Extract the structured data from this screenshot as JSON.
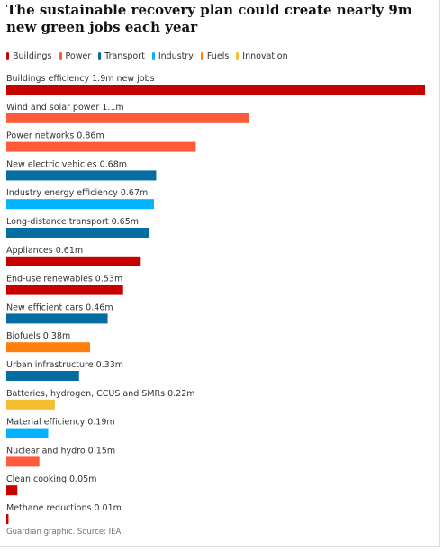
{
  "title": "The sustainable recovery plan could create nearly 9m new green jobs each year",
  "source": "Guardian graphic. Source: IEA",
  "colors": {
    "Buildings": "#c70000",
    "Power": "#ff5b3a",
    "Transport": "#056da1",
    "Industry": "#00b2ff",
    "Fuels": "#ff7f0f",
    "Innovation": "#f5be2c"
  },
  "legend": [
    {
      "label": "Buildings",
      "color": "#c70000"
    },
    {
      "label": "Power",
      "color": "#ff5b3a"
    },
    {
      "label": "Transport",
      "color": "#056da1"
    },
    {
      "label": "Industry",
      "color": "#00b2ff"
    },
    {
      "label": "Fuels",
      "color": "#ff7f0f"
    },
    {
      "label": "Innovation",
      "color": "#f5be2c"
    }
  ],
  "chart_data": {
    "type": "bar",
    "orientation": "horizontal",
    "title": "The sustainable recovery plan could create nearly 9m new green jobs each year",
    "unit": "m",
    "xlim": [
      0,
      1.9
    ],
    "grid": false,
    "legend_position": "top-left",
    "categories": [
      "Buildings efficiency 1.9m new jobs",
      "Wind and solar power 1.1m",
      "Power networks 0.86m",
      "New electric vehicles 0.68m",
      "Industry energy efficiency 0.67m",
      "Long-distance transport 0.65m",
      "Appliances 0.61m",
      "End-use renewables 0.53m",
      "New efficient cars 0.46m",
      "Biofuels 0.38m",
      "Urban infrastructure 0.33m",
      "Batteries, hydrogen, CCUS and SMRs 0.22m",
      "Material efficiency 0.19m",
      "Nuclear and hydro 0.15m",
      "Clean cooking 0.05m",
      "Methane reductions 0.01m"
    ],
    "values": [
      1.9,
      1.1,
      0.86,
      0.68,
      0.67,
      0.65,
      0.61,
      0.53,
      0.46,
      0.38,
      0.33,
      0.22,
      0.19,
      0.15,
      0.05,
      0.01
    ],
    "groups": [
      "Buildings",
      "Power",
      "Power",
      "Transport",
      "Industry",
      "Transport",
      "Buildings",
      "Buildings",
      "Transport",
      "Fuels",
      "Transport",
      "Innovation",
      "Industry",
      "Power",
      "Buildings",
      "Buildings"
    ]
  }
}
